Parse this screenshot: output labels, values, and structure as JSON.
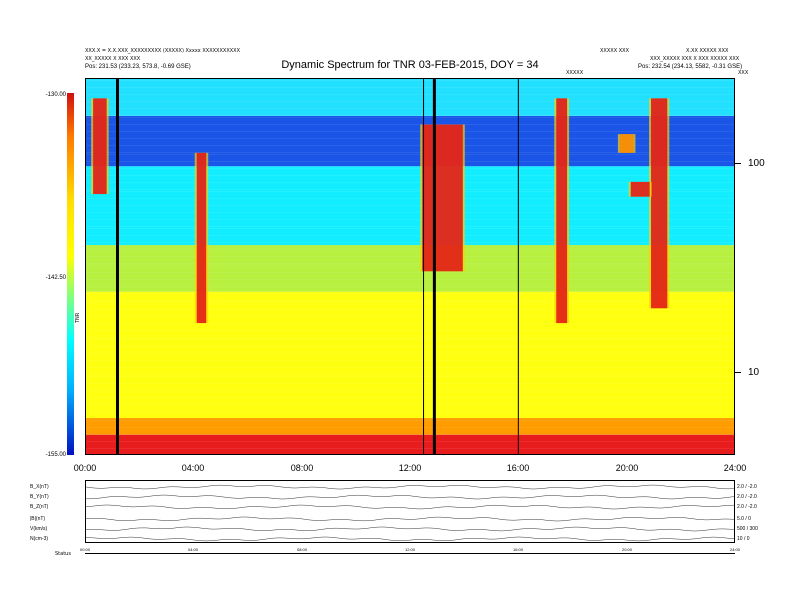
{
  "title": "Dynamic Spectrum for TNR 03-FEB-2015, DOY = 34",
  "header_left": {
    "line1": "XXX.X = X.X.XXX_XXXXXXXXX (XXXXX) Xxxxx  XXXXXXXXXXX",
    "line2": "XX_XXXXX X  XXX XXX",
    "line3": "Pos:  231.53 (233.23, 573.8, -0.69 GSE)"
  },
  "header_right": {
    "line1a": "XXXXX XXX",
    "line1b": "X.XX XXXXX XXX",
    "line2": "XXX_XXXXX XXX X  XXX XXXXX XXX",
    "line3": "Pos:  232.54 (234.13, 5582, -0.31 GSE)",
    "marker": "XXXXX",
    "corner": "XXX"
  },
  "colorbar": {
    "top_label": "-130.00",
    "mid_label": "-142.50",
    "bottom_label": "-155.00",
    "axis_label": "TNR"
  },
  "chart_data": {
    "type": "heatmap",
    "title": "Dynamic Spectrum for TNR 03-FEB-2015, DOY = 34",
    "x_axis": {
      "unit": "hours UT",
      "range": [
        0,
        24
      ],
      "tick_labels": [
        "00:00",
        "04:00",
        "08:00",
        "12:00",
        "16:00",
        "20:00",
        "24:00"
      ]
    },
    "y_axis": {
      "scale": "log",
      "range": [
        4,
        250
      ],
      "tick_labels": [
        "10",
        "100"
      ]
    },
    "z_axis": {
      "range": [
        -155.0,
        -130.0
      ],
      "tick_labels": [
        "-130.00",
        "-142.50",
        "-155.00"
      ]
    },
    "bands": [
      {
        "name": "red noise floor",
        "f_low": 4,
        "f_high": 5
      },
      {
        "name": "orange",
        "f_low": 5,
        "f_high": 6
      },
      {
        "name": "yellow",
        "f_low": 6,
        "f_high": 24
      },
      {
        "name": "green",
        "f_low": 24,
        "f_high": 40
      },
      {
        "name": "cyan",
        "f_low": 40,
        "f_high": 95
      },
      {
        "name": "blue",
        "f_low": 95,
        "f_high": 165
      },
      {
        "name": "cyan top",
        "f_low": 165,
        "f_high": 250
      }
    ],
    "data_gaps_hours": [
      1.2,
      12.9
    ],
    "thin_lines_hours": [
      12.5,
      16.0
    ],
    "bursts": [
      {
        "t": 0.55,
        "f_low": 70,
        "f_high": 200,
        "w": 0.5,
        "level": "red"
      },
      {
        "t": 4.3,
        "f_low": 17,
        "f_high": 110,
        "w": 0.35,
        "level": "red"
      },
      {
        "t": 13.2,
        "f_low": 30,
        "f_high": 150,
        "w": 1.5,
        "level": "red"
      },
      {
        "t": 17.6,
        "f_low": 17,
        "f_high": 200,
        "w": 0.4,
        "level": "red"
      },
      {
        "t": 21.2,
        "f_low": 20,
        "f_high": 200,
        "w": 0.6,
        "level": "red"
      },
      {
        "t": 20.5,
        "f_low": 68,
        "f_high": 80,
        "w": 0.7,
        "level": "red"
      },
      {
        "t": 20.0,
        "f_low": 110,
        "f_high": 135,
        "w": 0.5,
        "level": "orange"
      }
    ]
  },
  "lower_panel": {
    "rows": [
      {
        "left_label": "B_X(nT)",
        "right_label": "2.0 / -2.0"
      },
      {
        "left_label": "B_Y(nT)",
        "right_label": "2.0 / -2.0"
      },
      {
        "left_label": "B_Z(nT)",
        "right_label": "2.0 / -2.0"
      },
      {
        "left_label": "|B|(nT)",
        "right_label": "5.0 / 0"
      },
      {
        "left_label": "V(km/s)",
        "right_label": "500 / 300"
      },
      {
        "left_label": "N(cm-3)",
        "right_label": "10 / 0"
      }
    ],
    "x_tick_labels": [
      "00:00",
      "04:00",
      "08:00",
      "12:00",
      "16:00",
      "20:00",
      "24:00"
    ],
    "footer_label": "Status"
  }
}
